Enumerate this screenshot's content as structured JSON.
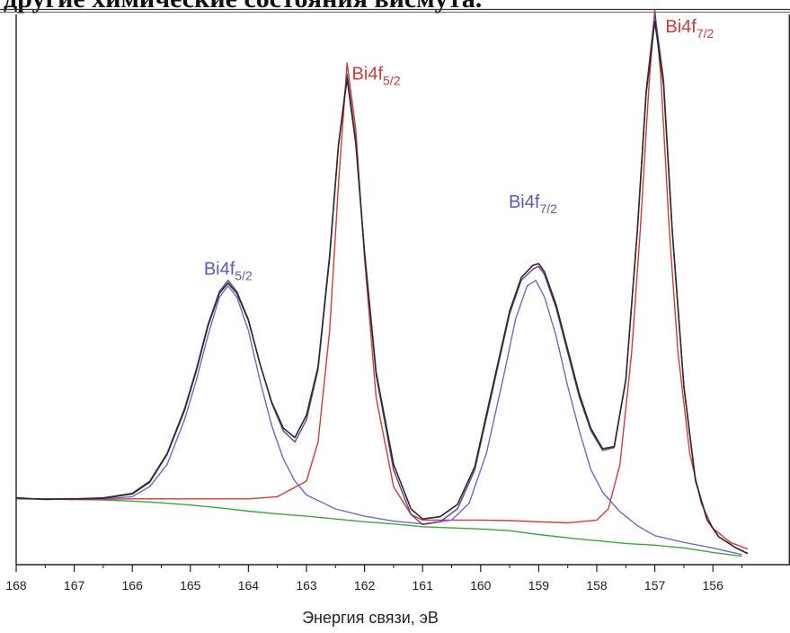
{
  "page": {
    "top_text": "другие химические состояния висмута."
  },
  "chart_data": {
    "type": "line",
    "title": "",
    "xlabel": "Энергия связи, эВ",
    "ylabel": "",
    "x_reversed": true,
    "xlim": [
      168,
      155.4
    ],
    "ylim": [
      0,
      1.0
    ],
    "x_ticks": [
      168,
      167,
      166,
      165,
      164,
      163,
      162,
      161,
      160,
      159,
      158,
      157,
      156
    ],
    "grid": false,
    "colors": {
      "measured": "#2b2b2b",
      "envelope": "#6e3b8c",
      "red_component": "#d43a3a",
      "blue_component": "#6a6ad0",
      "background": "#3aa83a",
      "axis": "#222222"
    },
    "peak_labels": [
      {
        "main": "Bi4f",
        "sub": "5/2",
        "x": 164.35,
        "y": 0.52,
        "color": "#5a5ab8"
      },
      {
        "main": "Bi4f",
        "sub": "5/2",
        "x": 161.8,
        "y": 0.87,
        "color": "#d43a3a"
      },
      {
        "main": "Bi4f",
        "sub": "7/2",
        "x": 159.1,
        "y": 0.64,
        "color": "#5a5ab8"
      },
      {
        "main": "Bi4f",
        "sub": "7/2",
        "x": 156.4,
        "y": 0.955,
        "color": "#d43a3a"
      }
    ],
    "series": [
      {
        "key": "background",
        "x": [
          168,
          167.5,
          167,
          166.5,
          166,
          165.5,
          165,
          164.5,
          164,
          163.5,
          163,
          162.5,
          162,
          161.5,
          161,
          160.5,
          160,
          159.5,
          159,
          158.5,
          158,
          157.5,
          157,
          156.5,
          156,
          155.5
        ],
        "y": [
          0.118,
          0.118,
          0.117,
          0.116,
          0.114,
          0.111,
          0.107,
          0.102,
          0.096,
          0.091,
          0.087,
          0.082,
          0.077,
          0.073,
          0.068,
          0.066,
          0.064,
          0.061,
          0.054,
          0.048,
          0.043,
          0.038,
          0.035,
          0.03,
          0.022,
          0.015
        ]
      },
      {
        "key": "red_component",
        "x": [
          168,
          167,
          166,
          165,
          164,
          163.5,
          163,
          162.8,
          162.6,
          162.45,
          162.3,
          162.15,
          162,
          161.8,
          161.5,
          161.2,
          161,
          160.5,
          160,
          159.5,
          159,
          158.5,
          158,
          157.8,
          157.6,
          157.4,
          157.25,
          157.1,
          157,
          156.9,
          156.75,
          156.6,
          156.4,
          156.2,
          156,
          155.7,
          155.4
        ],
        "y": [
          0.118,
          0.117,
          0.118,
          0.118,
          0.118,
          0.122,
          0.15,
          0.22,
          0.42,
          0.68,
          0.9,
          0.78,
          0.55,
          0.3,
          0.14,
          0.09,
          0.08,
          0.08,
          0.08,
          0.079,
          0.077,
          0.075,
          0.08,
          0.1,
          0.18,
          0.38,
          0.6,
          0.86,
          0.995,
          0.88,
          0.6,
          0.38,
          0.2,
          0.11,
          0.065,
          0.04,
          0.028
        ]
      },
      {
        "key": "blue_component",
        "x": [
          168,
          167,
          166.5,
          166,
          165.7,
          165.4,
          165.1,
          164.9,
          164.7,
          164.5,
          164.35,
          164.2,
          164,
          163.8,
          163.6,
          163.4,
          163.2,
          163,
          162.5,
          162,
          161.5,
          161,
          160.5,
          160.2,
          159.9,
          159.6,
          159.4,
          159.2,
          159.05,
          158.9,
          158.7,
          158.5,
          158.3,
          158.1,
          157.9,
          157.6,
          157.3,
          157,
          156.5,
          156,
          155.5
        ],
        "y": [
          0.118,
          0.118,
          0.118,
          0.122,
          0.14,
          0.18,
          0.26,
          0.33,
          0.41,
          0.48,
          0.5,
          0.48,
          0.42,
          0.33,
          0.25,
          0.19,
          0.15,
          0.125,
          0.1,
          0.087,
          0.078,
          0.073,
          0.08,
          0.11,
          0.2,
          0.34,
          0.44,
          0.5,
          0.51,
          0.48,
          0.41,
          0.32,
          0.24,
          0.17,
          0.13,
          0.095,
          0.07,
          0.052,
          0.04,
          0.03,
          0.018
        ]
      },
      {
        "key": "envelope",
        "x": [
          168,
          167,
          166.5,
          166,
          165.7,
          165.4,
          165.1,
          164.9,
          164.7,
          164.5,
          164.35,
          164.2,
          164,
          163.8,
          163.6,
          163.4,
          163.2,
          163,
          162.8,
          162.6,
          162.45,
          162.3,
          162.15,
          162,
          161.8,
          161.5,
          161.2,
          161,
          160.7,
          160.4,
          160.1,
          159.8,
          159.5,
          159.3,
          159.1,
          159,
          158.9,
          158.7,
          158.5,
          158.3,
          158.1,
          157.9,
          157.7,
          157.5,
          157.3,
          157.15,
          157,
          156.85,
          156.7,
          156.5,
          156.3,
          156.1,
          155.9,
          155.6,
          155.4
        ],
        "y": [
          0.118,
          0.118,
          0.12,
          0.128,
          0.15,
          0.2,
          0.28,
          0.35,
          0.43,
          0.49,
          0.51,
          0.49,
          0.44,
          0.36,
          0.29,
          0.24,
          0.22,
          0.26,
          0.35,
          0.55,
          0.75,
          0.88,
          0.76,
          0.56,
          0.34,
          0.17,
          0.09,
          0.072,
          0.077,
          0.1,
          0.17,
          0.31,
          0.45,
          0.51,
          0.53,
          0.535,
          0.52,
          0.46,
          0.38,
          0.3,
          0.24,
          0.205,
          0.21,
          0.33,
          0.6,
          0.85,
          0.99,
          0.87,
          0.6,
          0.32,
          0.15,
          0.08,
          0.05,
          0.03,
          0.02
        ]
      },
      {
        "key": "measured",
        "x": [
          168,
          167.5,
          167,
          166.5,
          166,
          165.7,
          165.4,
          165.1,
          164.9,
          164.7,
          164.5,
          164.35,
          164.2,
          164,
          163.8,
          163.6,
          163.4,
          163.2,
          163,
          162.8,
          162.6,
          162.45,
          162.3,
          162.15,
          162,
          161.8,
          161.5,
          161.2,
          161,
          160.7,
          160.4,
          160.1,
          159.8,
          159.5,
          159.3,
          159.1,
          159,
          158.9,
          158.7,
          158.5,
          158.3,
          158.1,
          157.9,
          157.7,
          157.5,
          157.3,
          157.15,
          157,
          156.85,
          156.7,
          156.5,
          156.3,
          156.1,
          155.9,
          155.6,
          155.4
        ],
        "y": [
          0.12,
          0.117,
          0.118,
          0.119,
          0.127,
          0.148,
          0.198,
          0.277,
          0.347,
          0.427,
          0.487,
          0.505,
          0.487,
          0.438,
          0.36,
          0.292,
          0.245,
          0.228,
          0.268,
          0.355,
          0.555,
          0.752,
          0.872,
          0.755,
          0.56,
          0.345,
          0.18,
          0.1,
          0.082,
          0.086,
          0.108,
          0.176,
          0.316,
          0.455,
          0.515,
          0.537,
          0.54,
          0.525,
          0.466,
          0.386,
          0.306,
          0.244,
          0.208,
          0.212,
          0.332,
          0.6,
          0.845,
          0.975,
          0.862,
          0.598,
          0.32,
          0.152,
          0.081,
          0.05,
          0.03,
          0.02
        ]
      }
    ]
  }
}
